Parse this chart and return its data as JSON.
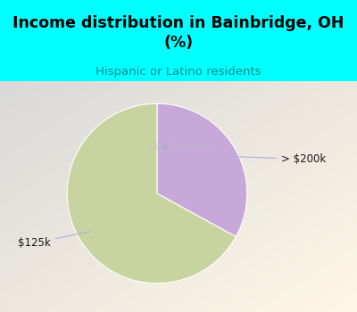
{
  "title": "Income distribution in Bainbridge, OH\n(%)",
  "subtitle": "Hispanic or Latino residents",
  "title_color": "#000000",
  "subtitle_color": "#008B8B",
  "title_bg_color": "#00FFFF",
  "slices": [
    {
      "label": "> $200k",
      "value": 33,
      "color": "#c8a8d8"
    },
    {
      "label": "$125k",
      "value": 67,
      "color": "#c8d4a0"
    }
  ],
  "startangle": 90,
  "figsize": [
    4.0,
    3.5
  ],
  "dpi": 100,
  "watermark": "City-Data.com"
}
